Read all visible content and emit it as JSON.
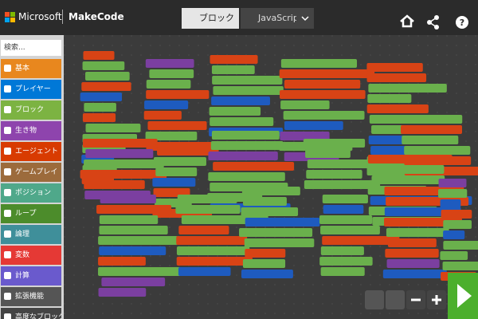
{
  "header": {
    "brand": "Microsoft",
    "product": "MakeCode",
    "tabs": [
      "ブロック",
      "JavaScript"
    ]
  },
  "toolbox": {
    "search": "検索...",
    "categories": [
      "基本",
      "プレイヤー",
      "ブロック",
      "生き物",
      "エージェント",
      "ゲームプレイ",
      "ポジション",
      "ループ",
      "論理",
      "変数",
      "計算",
      "拡張機能",
      "高度なブロック"
    ]
  }
}
